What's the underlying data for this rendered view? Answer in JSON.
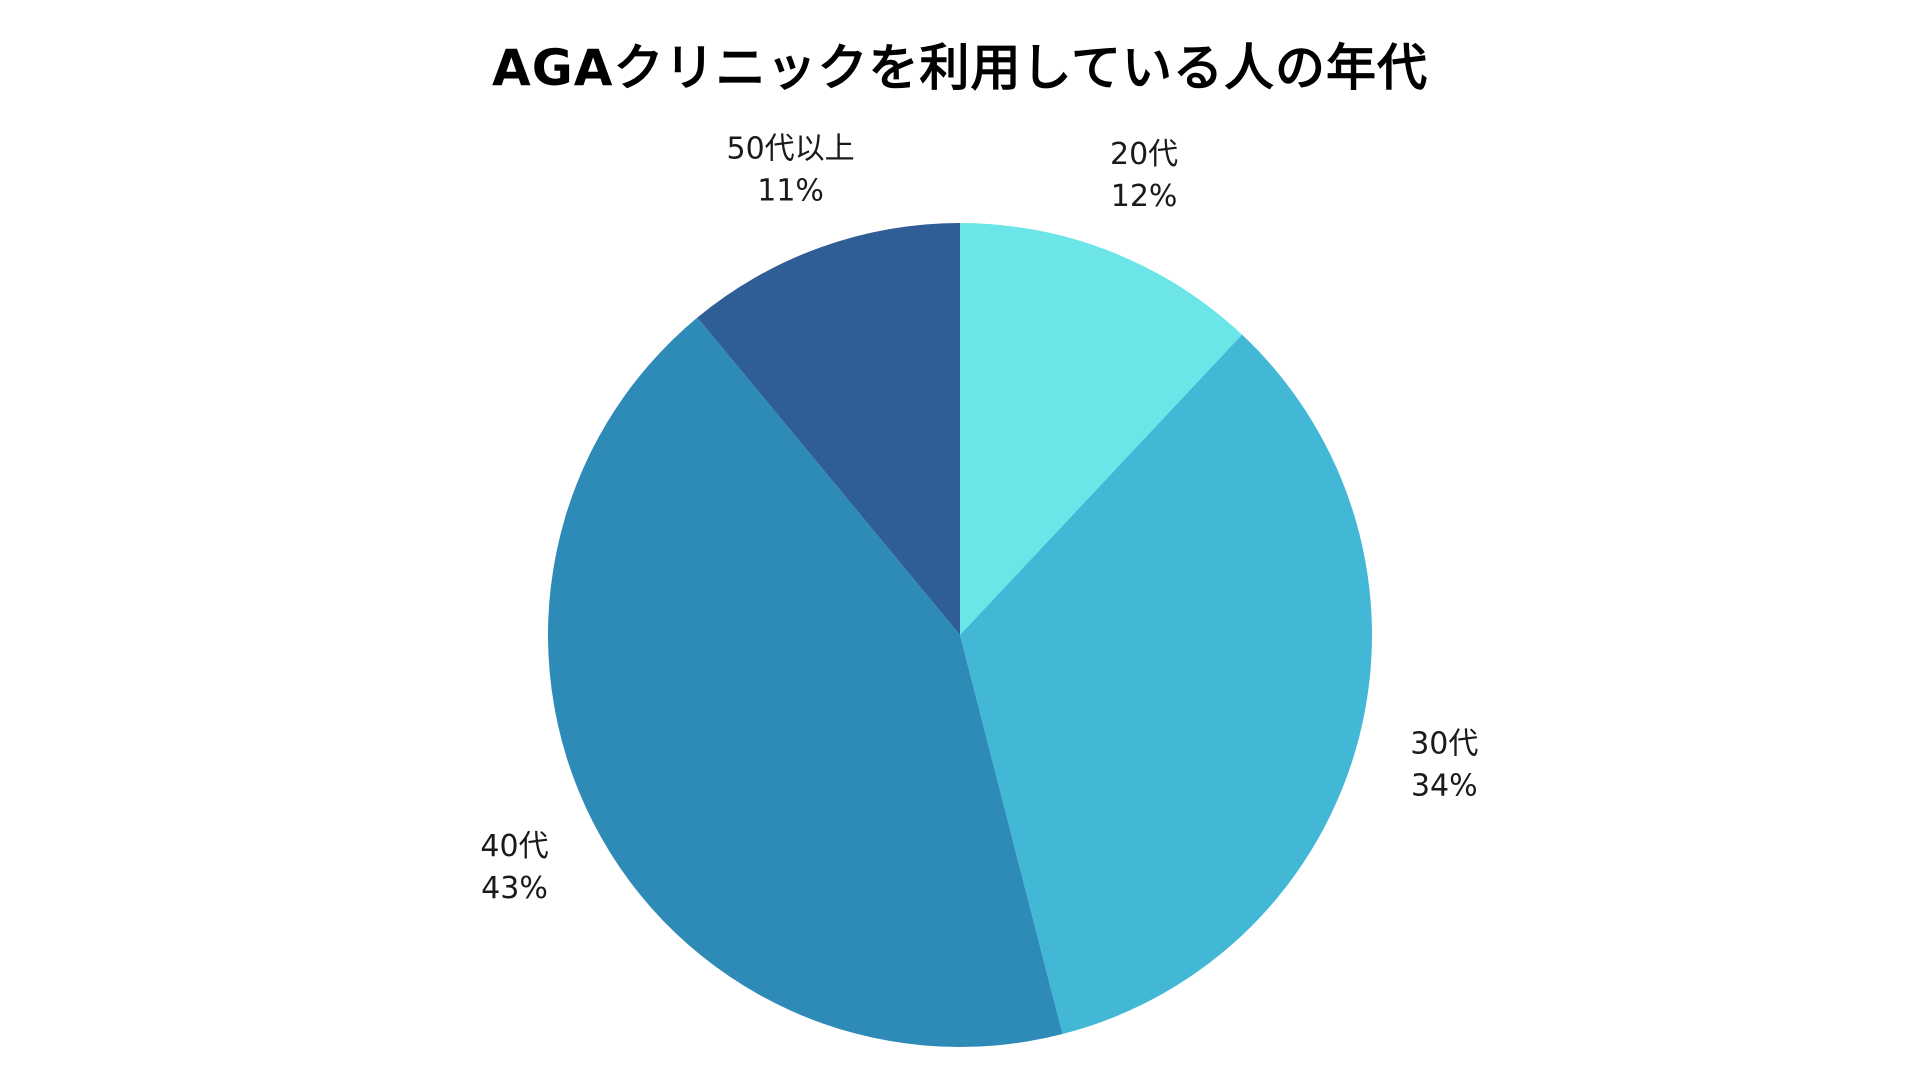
{
  "chart_data": {
    "type": "pie",
    "title": "AGAクリニックを利用している人の年代",
    "start_angle_deg": 0,
    "direction": "clockwise",
    "slices": [
      {
        "label": "20代",
        "value": 12,
        "value_label": "12%",
        "color": "#6be5e8"
      },
      {
        "label": "30代",
        "value": 34,
        "value_label": "34%",
        "color": "#42b7d6"
      },
      {
        "label": "40代",
        "value": 43,
        "value_label": "43%",
        "color": "#2e8bb8"
      },
      {
        "label": "50代以上",
        "value": 11,
        "value_label": "11%",
        "color": "#2e5e95"
      }
    ]
  }
}
